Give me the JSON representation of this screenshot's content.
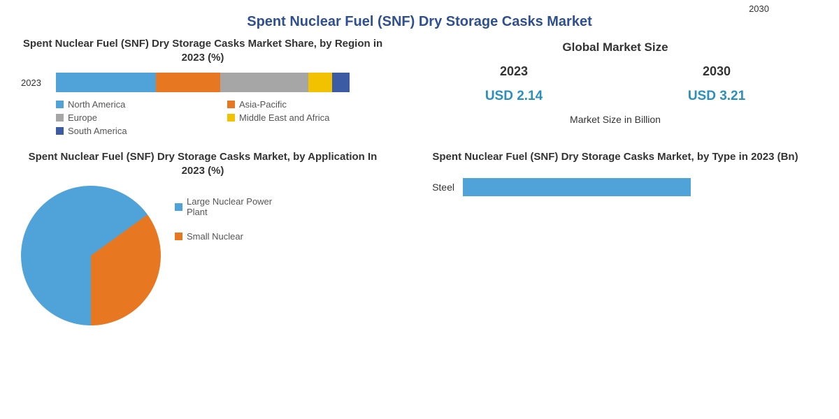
{
  "mainTitle": "Spent Nuclear Fuel (SNF) Dry Storage Casks Market",
  "corner2030": "2030",
  "regionChart": {
    "type": "stacked-bar",
    "title": "Spent Nuclear Fuel (SNF) Dry Storage Casks Market Share, by Region in 2023 (%)",
    "yearLabel": "2023",
    "segments": [
      {
        "name": "North America",
        "value": 34,
        "color": "#4fa3d9"
      },
      {
        "name": "Asia-Pacific",
        "value": 22,
        "color": "#e87722"
      },
      {
        "name": "Europe",
        "value": 30,
        "color": "#a6a6a6"
      },
      {
        "name": "Middle East and Africa",
        "value": 8,
        "color": "#f2c200"
      },
      {
        "name": "South America",
        "value": 6,
        "color": "#3b5ba5"
      }
    ],
    "barWidthPx": 420,
    "barHeightPx": 28,
    "title_fontsize": 15,
    "label_fontsize": 13
  },
  "marketSize": {
    "title": "Global Market Size",
    "years": [
      "2023",
      "2030"
    ],
    "values": [
      "USD 2.14",
      "USD 3.21"
    ],
    "valueColor": "#2a8fbd",
    "unitLabel": "Market Size in Billion",
    "title_fontsize": 17,
    "year_fontsize": 18,
    "value_fontsize": 19
  },
  "applicationChart": {
    "type": "pie",
    "title": "Spent Nuclear Fuel (SNF) Dry Storage Casks Market, by Application In 2023 (%)",
    "slices": [
      {
        "name": "Large Nuclear Power Plant",
        "value": 65,
        "color": "#4fa3d9"
      },
      {
        "name": "Small Nuclear",
        "value": 35,
        "color": "#e87722"
      }
    ],
    "diameterPx": 200,
    "title_fontsize": 15,
    "legend_fontsize": 13
  },
  "typeChart": {
    "type": "bar",
    "title": "Spent Nuclear Fuel (SNF) Dry Storage Casks Market, by Type in 2023 (Bn)",
    "bars": [
      {
        "name": "Steel",
        "value": 1.55,
        "color": "#4fa3d9"
      }
    ],
    "xlim": [
      0,
      2.0
    ],
    "trackWidthPx": 420,
    "barHeightPx": 26,
    "title_fontsize": 15,
    "label_fontsize": 14
  },
  "colors": {
    "titleBlue": "#2e5090",
    "textDark": "#333333",
    "textMid": "#555555",
    "background": "#ffffff"
  }
}
